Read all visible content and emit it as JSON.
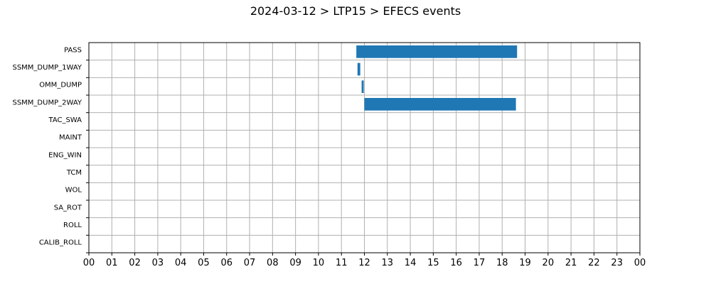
{
  "chart_data": {
    "type": "bar",
    "orientation": "horizontal",
    "title": "2024-03-12 > LTP15 > EFECS events",
    "xlabel": "",
    "ylabel": "",
    "xlim": [
      0,
      24
    ],
    "x_tick_labels": [
      "00",
      "01",
      "02",
      "03",
      "04",
      "05",
      "06",
      "07",
      "08",
      "09",
      "10",
      "11",
      "12",
      "13",
      "14",
      "15",
      "16",
      "17",
      "18",
      "19",
      "20",
      "21",
      "22",
      "23",
      "00"
    ],
    "categories": [
      "PASS",
      "SSMM_DUMP_1WAY",
      "OMM_DUMP",
      "SSMM_DUMP_2WAY",
      "TAC_SWA",
      "MAINT",
      "ENG_WIN",
      "TCM",
      "WOL",
      "SA_ROT",
      "ROLL",
      "CALIB_ROLL"
    ],
    "bars": [
      {
        "category": "PASS",
        "start": 11.65,
        "end": 18.65
      },
      {
        "category": "SSMM_DUMP_1WAY",
        "start": 11.7,
        "end": 11.82
      },
      {
        "category": "OMM_DUMP",
        "start": 11.88,
        "end": 11.97
      },
      {
        "category": "SSMM_DUMP_2WAY",
        "start": 12.0,
        "end": 18.6
      }
    ],
    "grid": true,
    "bar_color": "#1f77b4"
  }
}
